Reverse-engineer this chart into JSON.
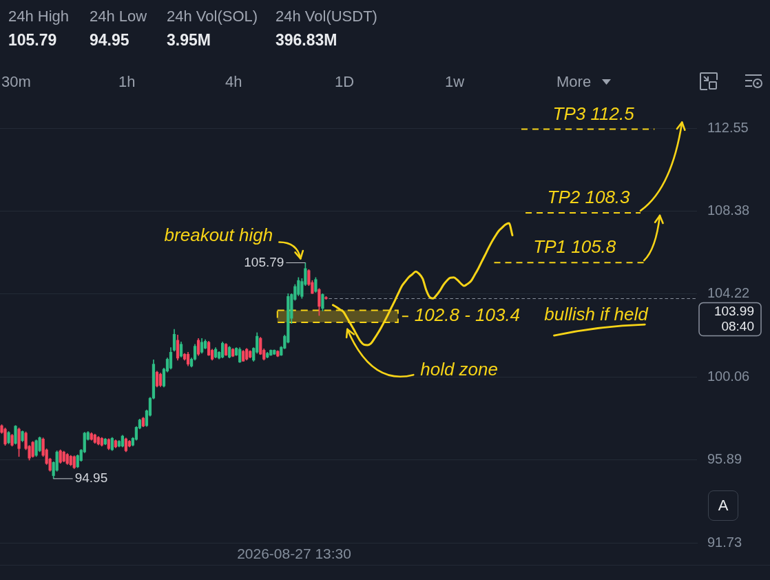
{
  "chart_data": {
    "type": "candlestick",
    "categories": [
      null,
      null,
      null,
      null,
      null,
      null,
      null,
      null,
      null,
      null,
      null,
      null,
      null,
      null,
      null,
      null,
      null,
      null,
      null,
      null,
      null,
      null,
      null,
      null,
      null,
      null,
      null,
      null,
      null,
      null,
      null,
      null,
      null,
      null,
      null,
      null,
      null,
      null,
      null,
      null,
      null,
      null,
      null,
      null,
      null,
      null,
      null,
      null,
      null,
      null,
      null,
      null,
      null,
      null,
      null,
      null,
      null,
      null,
      null,
      null,
      null,
      null,
      null,
      null,
      null,
      null,
      null,
      null,
      null,
      null,
      null,
      null,
      null,
      null,
      null,
      null,
      null,
      null,
      null,
      null,
      null,
      null,
      null,
      null,
      null,
      null,
      null,
      null,
      null,
      null,
      null,
      null,
      null,
      null,
      null,
      null,
      null,
      null,
      null,
      null,
      null,
      null,
      null,
      null,
      null,
      null,
      null,
      null,
      null,
      null,
      null,
      null,
      null,
      null,
      null,
      null,
      null,
      null,
      null,
      null,
      null,
      null,
      null,
      null,
      null,
      null,
      null,
      null,
      null,
      null,
      null,
      null,
      null,
      null,
      null,
      null,
      null,
      null,
      null,
      null,
      null,
      null,
      null,
      null,
      null,
      null,
      null,
      null,
      null,
      null,
      null,
      null,
      null,
      null,
      null,
      null,
      null,
      null,
      null,
      null,
      null,
      null,
      null,
      null,
      null,
      null,
      null,
      null,
      null,
      null,
      null,
      null,
      null,
      null,
      null,
      null,
      null,
      null,
      null,
      null,
      null,
      null,
      null,
      null,
      null,
      null,
      null,
      null,
      null,
      null,
      null,
      null,
      null,
      null,
      null,
      null,
      null,
      null,
      null,
      null,
      null,
      null
    ],
    "ohlc": [
      [
        97.61,
        97.66,
        97.22,
        97.27
      ],
      [
        97.44,
        97.5,
        96.62,
        96.69
      ],
      [
        96.75,
        97.32,
        96.7,
        97.27
      ],
      [
        97.13,
        97.18,
        96.58,
        96.63
      ],
      [
        96.72,
        97.62,
        96.68,
        97.59
      ],
      [
        97.44,
        97.5,
        96.06,
        96.46
      ],
      [
        96.86,
        97.35,
        96.8,
        97.32
      ],
      [
        97.24,
        97.3,
        96.4,
        96.46
      ],
      [
        96.58,
        96.62,
        95.88,
        95.98
      ],
      [
        96.78,
        96.82,
        96.02,
        96.06
      ],
      [
        96.12,
        96.9,
        96.06,
        96.86
      ],
      [
        96.35,
        97.05,
        96.3,
        97.01
      ],
      [
        96.94,
        97,
        96.06,
        96.12
      ],
      [
        96.4,
        96.45,
        95.66,
        95.71
      ],
      [
        95.94,
        95.98,
        95.32,
        95.37
      ],
      [
        95.1,
        95.8,
        94.95,
        95.77
      ],
      [
        95.37,
        96.35,
        95.32,
        96.29
      ],
      [
        96.35,
        96.4,
        95.72,
        95.77
      ],
      [
        96.29,
        96.33,
        95.79,
        95.83
      ],
      [
        96.17,
        96.22,
        95.66,
        95.71
      ],
      [
        96.08,
        96.12,
        95.6,
        95.65
      ],
      [
        96.06,
        96.1,
        95.45,
        95.5
      ],
      [
        95.54,
        96.15,
        95.5,
        96.11
      ],
      [
        95.86,
        96.42,
        95.82,
        96.38
      ],
      [
        96.29,
        97.28,
        96.25,
        97.24
      ],
      [
        96.92,
        97.32,
        96.88,
        97.27
      ],
      [
        97.21,
        97.26,
        96.88,
        96.92
      ],
      [
        97.15,
        97.19,
        96.72,
        96.77
      ],
      [
        97.03,
        97.07,
        96.64,
        96.69
      ],
      [
        96.98,
        97.02,
        96.58,
        96.63
      ],
      [
        96.69,
        96.98,
        96.65,
        96.94
      ],
      [
        96.92,
        96.96,
        96.4,
        96.46
      ],
      [
        96.4,
        97.02,
        96.36,
        96.98
      ],
      [
        96.86,
        96.9,
        96.5,
        96.54
      ],
      [
        96.58,
        96.87,
        96.54,
        96.83
      ],
      [
        96.58,
        97.13,
        96.54,
        97.09
      ],
      [
        96.95,
        96.99,
        96.3,
        96.35
      ],
      [
        96.83,
        96.87,
        96.54,
        96.58
      ],
      [
        96.63,
        97.02,
        96.59,
        96.98
      ],
      [
        96.92,
        97.57,
        96.88,
        97.53
      ],
      [
        97.49,
        97.94,
        97.45,
        97.9
      ],
      [
        97.99,
        98.03,
        97.55,
        97.59
      ],
      [
        97.61,
        98.4,
        97.57,
        98.36
      ],
      [
        98.13,
        99.03,
        98.09,
        98.99
      ],
      [
        98.99,
        100.92,
        98.95,
        100.7
      ],
      [
        100.3,
        100.35,
        99.55,
        99.6
      ],
      [
        100.2,
        100.25,
        99.57,
        99.63
      ],
      [
        99.6,
        100.5,
        99.55,
        100.45
      ],
      [
        100.35,
        101.01,
        100.3,
        100.95
      ],
      [
        100.5,
        101.53,
        100.45,
        101.3
      ],
      [
        101.4,
        102.45,
        101.35,
        102.2
      ],
      [
        101.9,
        102.16,
        100.9,
        101
      ],
      [
        101.1,
        101.82,
        101.05,
        101.7
      ],
      [
        101.2,
        101.24,
        100.9,
        100.95
      ],
      [
        101.2,
        101.3,
        100.61,
        100.7
      ],
      [
        100.6,
        101.01,
        100.55,
        100.95
      ],
      [
        100.95,
        101.7,
        100.9,
        101.6
      ],
      [
        101.9,
        101.99,
        101.13,
        101.2
      ],
      [
        101.3,
        101.99,
        101.24,
        101.8
      ],
      [
        101.5,
        101.93,
        101.47,
        101.85
      ],
      [
        101.8,
        101.85,
        101.13,
        101.15
      ],
      [
        101.4,
        101.45,
        100.9,
        100.95
      ],
      [
        101.05,
        101.53,
        101.01,
        101.45
      ],
      [
        101,
        101.33,
        100.96,
        101.3
      ],
      [
        101.05,
        101.82,
        101.01,
        101.75
      ],
      [
        101.7,
        101.74,
        101.13,
        101.15
      ],
      [
        101.05,
        101.59,
        101.01,
        101.55
      ],
      [
        101.45,
        101.49,
        101.07,
        101.1
      ],
      [
        101.15,
        101.53,
        101.13,
        101.5
      ],
      [
        100.8,
        101.53,
        100.78,
        101.45
      ],
      [
        101.35,
        101.39,
        100.84,
        100.85
      ],
      [
        101.45,
        101.49,
        100.9,
        100.95
      ],
      [
        101.35,
        101.38,
        101.01,
        101.05
      ],
      [
        100.9,
        101.53,
        100.84,
        101.5
      ],
      [
        101.3,
        102.28,
        101.24,
        102.1
      ],
      [
        102,
        102.05,
        101.18,
        101.2
      ],
      [
        101.4,
        101.47,
        100.9,
        100.95
      ],
      [
        101.05,
        101.3,
        101.01,
        101.25
      ],
      [
        101.15,
        101.42,
        101.13,
        101.4
      ],
      [
        101.2,
        101.42,
        101.18,
        101.4
      ],
      [
        101.35,
        101.38,
        101.07,
        101.1
      ],
      [
        101.15,
        101.59,
        101.13,
        101.55
      ],
      [
        101.5,
        102.16,
        101.47,
        102.1
      ],
      [
        101.8,
        104.24,
        101.76,
        104.1
      ],
      [
        103,
        104.24,
        102.74,
        104.2
      ],
      [
        103.95,
        104.7,
        103.9,
        104.6
      ],
      [
        104.2,
        105.05,
        104.13,
        104.9
      ],
      [
        104.1,
        105,
        104,
        104.85
      ],
      [
        104.7,
        105.79,
        104.64,
        105.5
      ],
      [
        105.4,
        105.45,
        104.64,
        104.7
      ],
      [
        104.8,
        104.9,
        104.24,
        104.25
      ],
      [
        104.35,
        105.05,
        104.3,
        104.95
      ],
      [
        104.45,
        104.5,
        103.14,
        103.6
      ],
      [
        103.5,
        104.24,
        103.37,
        104.2
      ],
      [
        104.05,
        104.1,
        103.95,
        103.99
      ],
      null,
      null,
      null,
      null,
      null,
      null,
      null,
      null,
      null,
      null,
      null,
      null,
      null,
      null,
      null,
      null,
      null,
      null,
      null,
      null,
      null,
      null,
      null,
      null,
      null,
      null,
      null,
      null,
      null,
      null,
      null,
      null,
      null,
      null,
      null,
      null,
      null,
      null,
      null,
      null,
      null,
      null,
      null,
      null,
      null,
      null,
      null,
      null,
      null,
      null,
      null,
      null,
      null,
      null,
      null,
      null,
      null,
      null,
      null,
      null,
      null,
      null,
      null,
      null,
      null,
      null,
      null,
      null,
      null,
      null,
      null,
      null,
      null,
      null,
      null,
      null,
      null,
      null,
      null,
      null,
      null,
      null,
      null,
      null,
      null,
      null,
      null,
      null,
      null,
      null,
      null,
      null,
      null,
      null,
      null,
      null,
      null,
      null,
      null,
      null,
      null,
      null,
      null,
      null,
      null,
      null,
      null
    ],
    "series": [
      {
        "type": "line",
        "color": "#f7d417",
        "line_style": "solid",
        "values": [
          null,
          null,
          null,
          null,
          null,
          null,
          null,
          null,
          null,
          null,
          null,
          null,
          null,
          null,
          null,
          null,
          null,
          null,
          null,
          null,
          null,
          null,
          null,
          null,
          null,
          null,
          null,
          null,
          null,
          null,
          null,
          null,
          null,
          null,
          null,
          null,
          null,
          null,
          null,
          null,
          null,
          null,
          null,
          null,
          null,
          null,
          null,
          null,
          null,
          null,
          null,
          null,
          null,
          null,
          null,
          null,
          null,
          null,
          null,
          null,
          null,
          null,
          null,
          null,
          null,
          null,
          null,
          null,
          null,
          null,
          null,
          null,
          null,
          null,
          null,
          null,
          null,
          null,
          null,
          null,
          null,
          null,
          null,
          null,
          null,
          null,
          null,
          null,
          null,
          null,
          null,
          null,
          null,
          null,
          null,
          null,
          103.67,
          103.57,
          103.45,
          103.33,
          103.05,
          102.75,
          102.45,
          102.13,
          101.84,
          101.68,
          101.66,
          101.74,
          101.98,
          102.25,
          102.55,
          102.87,
          103.21,
          103.56,
          103.91,
          104.28,
          104.63,
          104.86,
          105.07,
          105.21,
          105.35,
          105.23,
          104.99,
          104.43,
          104.07,
          104.0,
          104.16,
          104.39,
          104.68,
          104.89,
          105.04,
          105.05,
          104.94,
          104.76,
          104.63,
          104.73,
          104.87,
          105.16,
          105.46,
          105.81,
          106.15,
          106.5,
          106.83,
          107.12,
          107.38,
          107.55,
          107.71,
          107.78,
          107.17,
          null,
          null,
          null,
          null,
          null,
          null,
          null,
          null,
          null,
          null,
          null,
          null,
          null,
          null,
          null,
          null,
          null,
          null,
          null,
          null,
          null,
          null,
          null,
          null,
          null,
          null,
          null,
          null,
          null,
          null,
          null,
          null,
          null,
          null,
          null,
          null,
          null,
          null,
          null,
          null,
          null,
          null,
          null,
          null,
          null,
          null,
          null,
          null,
          null,
          null,
          null,
          null,
          null
        ]
      }
    ],
    "ylim": [
      91.73,
      112.55
    ],
    "yticks": [
      91.73,
      95.89,
      100.06,
      104.22,
      108.38,
      112.55
    ],
    "grid": "y",
    "tick_labels": "y",
    "marker": "none",
    "ref_lines": [
      {
        "axis": "y",
        "value": 103.99,
        "label": "103.99",
        "color": "#8a919e",
        "line_style": "dashed"
      },
      {
        "axis": "y",
        "value": 105.8,
        "label": "TP1 105.8",
        "color": "#f7d417",
        "line_style": "dashed"
      },
      {
        "axis": "y",
        "value": 108.3,
        "label": "TP2 108.3",
        "color": "#f7d417",
        "line_style": "dashed"
      },
      {
        "axis": "y",
        "value": 112.5,
        "label": "TP3 112.5",
        "color": "#f7d417",
        "line_style": "dashed"
      }
    ],
    "bands": [
      {
        "axis": "y",
        "from": 102.8,
        "to": 103.4,
        "label": "102.8 - 103.4",
        "color": "#f7d417"
      }
    ],
    "annotations": [
      "24h High",
      "105.79",
      "24h Low",
      "94.95",
      "24h Vol(SOL)",
      "3.95M",
      "24h Vol(USDT)",
      "396.83M",
      "30m",
      "1h",
      "4h",
      "1D",
      "1w",
      "More",
      "A",
      "2026-08-27 13:30",
      "bullish if held",
      "hold zone",
      "08:40",
      "breakout high",
      "105.79",
      "94.95"
    ]
  }
}
